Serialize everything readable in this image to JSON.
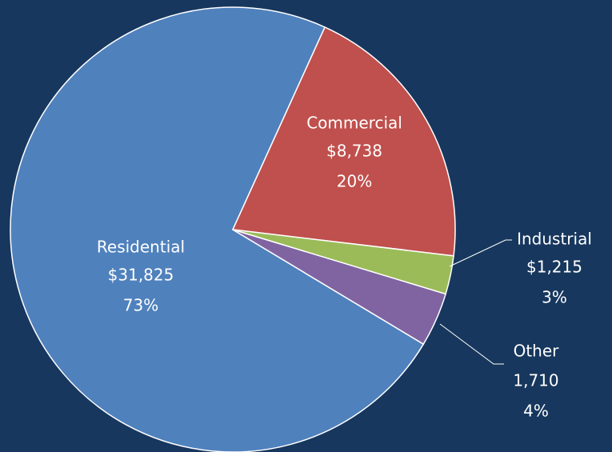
{
  "chart_data": {
    "type": "pie",
    "categories": [
      "Residential",
      "Commercial",
      "Industrial",
      "Other"
    ],
    "values": [
      31825,
      8738,
      1215,
      1710
    ],
    "value_labels": [
      "$31,825",
      "$8,738",
      "$1,215",
      "1,710"
    ],
    "percent_labels": [
      "73%",
      "20%",
      "3%",
      "4%"
    ],
    "colors": [
      "#4f81bd",
      "#c0504d",
      "#9bbb59",
      "#8064a2"
    ]
  }
}
